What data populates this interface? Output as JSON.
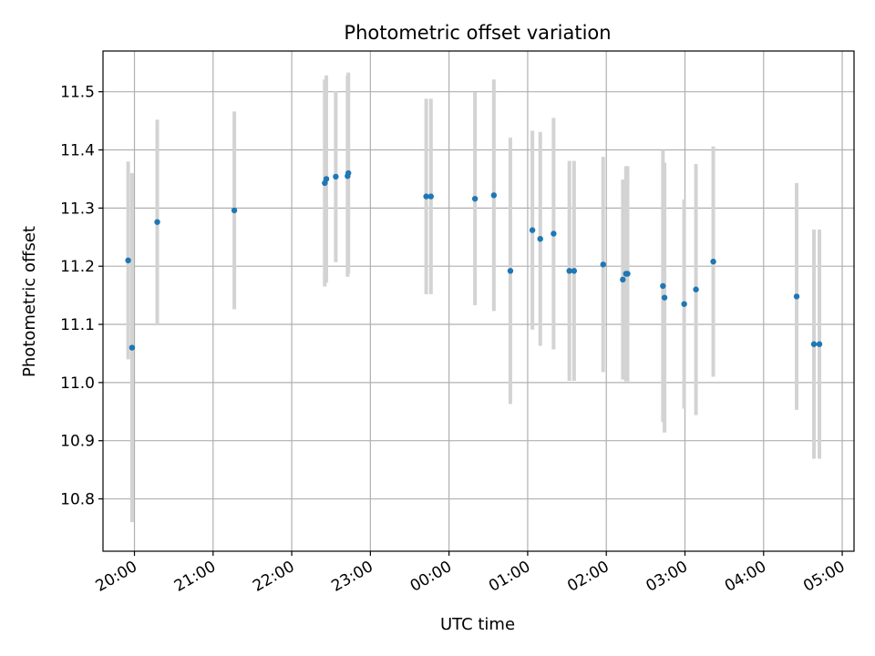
{
  "chart_data": {
    "type": "scatter",
    "title": "Photometric offset variation",
    "xlabel": "UTC time",
    "ylabel": "Photometric offset",
    "x_unit": "hours",
    "xlim": [
      19.6,
      29.15
    ],
    "ylim": [
      10.71,
      11.57
    ],
    "x_ticks": [
      {
        "value": 20,
        "label": "20:00"
      },
      {
        "value": 21,
        "label": "21:00"
      },
      {
        "value": 22,
        "label": "22:00"
      },
      {
        "value": 23,
        "label": "23:00"
      },
      {
        "value": 24,
        "label": "00:00"
      },
      {
        "value": 25,
        "label": "01:00"
      },
      {
        "value": 26,
        "label": "02:00"
      },
      {
        "value": 27,
        "label": "03:00"
      },
      {
        "value": 28,
        "label": "04:00"
      },
      {
        "value": 29,
        "label": "05:00"
      }
    ],
    "y_ticks": [
      {
        "value": 10.8,
        "label": "10.8"
      },
      {
        "value": 10.9,
        "label": "10.9"
      },
      {
        "value": 11.0,
        "label": "11.0"
      },
      {
        "value": 11.1,
        "label": "11.1"
      },
      {
        "value": 11.2,
        "label": "11.2"
      },
      {
        "value": 11.3,
        "label": "11.3"
      },
      {
        "value": 11.4,
        "label": "11.4"
      },
      {
        "value": 11.5,
        "label": "11.5"
      }
    ],
    "grid": true,
    "point_color": "#1f77b4",
    "errorbar_color": "#d3d3d3",
    "points": [
      {
        "x": 19.92,
        "y": 11.21,
        "err": 0.17
      },
      {
        "x": 19.97,
        "y": 11.06,
        "err": 0.3
      },
      {
        "x": 20.29,
        "y": 11.276,
        "err": 0.176
      },
      {
        "x": 21.27,
        "y": 11.296,
        "err": 0.17
      },
      {
        "x": 22.42,
        "y": 11.343,
        "err": 0.178
      },
      {
        "x": 22.44,
        "y": 11.35,
        "err": 0.178
      },
      {
        "x": 22.56,
        "y": 11.354,
        "err": 0.147
      },
      {
        "x": 22.71,
        "y": 11.355,
        "err": 0.173
      },
      {
        "x": 22.72,
        "y": 11.36,
        "err": 0.173
      },
      {
        "x": 23.71,
        "y": 11.32,
        "err": 0.168
      },
      {
        "x": 23.77,
        "y": 11.32,
        "err": 0.168
      },
      {
        "x": 24.33,
        "y": 11.316,
        "err": 0.183
      },
      {
        "x": 24.57,
        "y": 11.322,
        "err": 0.199
      },
      {
        "x": 24.78,
        "y": 11.192,
        "err": 0.229
      },
      {
        "x": 25.06,
        "y": 11.262,
        "err": 0.171
      },
      {
        "x": 25.16,
        "y": 11.247,
        "err": 0.184
      },
      {
        "x": 25.33,
        "y": 11.256,
        "err": 0.199
      },
      {
        "x": 25.53,
        "y": 11.192,
        "err": 0.189
      },
      {
        "x": 25.59,
        "y": 11.192,
        "err": 0.189
      },
      {
        "x": 25.96,
        "y": 11.203,
        "err": 0.185
      },
      {
        "x": 26.21,
        "y": 11.177,
        "err": 0.172
      },
      {
        "x": 26.25,
        "y": 11.187,
        "err": 0.185
      },
      {
        "x": 26.27,
        "y": 11.187,
        "err": 0.185
      },
      {
        "x": 26.72,
        "y": 11.166,
        "err": 0.234
      },
      {
        "x": 26.74,
        "y": 11.146,
        "err": 0.232
      },
      {
        "x": 26.99,
        "y": 11.135,
        "err": 0.18
      },
      {
        "x": 27.14,
        "y": 11.16,
        "err": 0.216
      },
      {
        "x": 27.36,
        "y": 11.208,
        "err": 0.198
      },
      {
        "x": 28.42,
        "y": 11.148,
        "err": 0.195
      },
      {
        "x": 28.64,
        "y": 11.066,
        "err": 0.197
      },
      {
        "x": 28.71,
        "y": 11.066,
        "err": 0.197
      }
    ]
  }
}
